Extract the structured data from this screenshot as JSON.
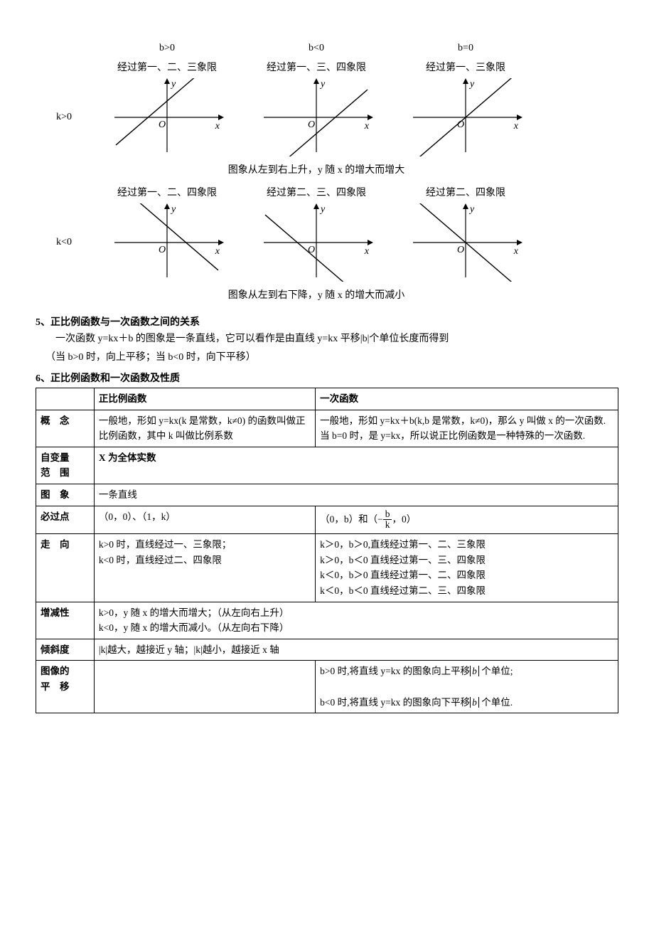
{
  "graph_grid": {
    "col_headers": {
      "b_pos": "b>0",
      "b_neg": "b<0",
      "b_zero": "b=0"
    },
    "rows": [
      {
        "row_label": "k>0",
        "cells": [
          {
            "quadrants": "经过第一、二、三象限",
            "slope": 1,
            "intercept": 0.5
          },
          {
            "quadrants": "经过第一、三、四象限",
            "slope": 1,
            "intercept": -0.5
          },
          {
            "quadrants": "经过第一、三象限",
            "slope": 1,
            "intercept": 0
          }
        ],
        "summary": "图象从左到右上升，y 随 x 的增大而增大"
      },
      {
        "row_label": "k<0",
        "cells": [
          {
            "quadrants": "经过第一、二、四象限",
            "slope": -1,
            "intercept": 0.5
          },
          {
            "quadrants": "经过第二、三、四象限",
            "slope": -1,
            "intercept": -0.5
          },
          {
            "quadrants": "经过第二、四象限",
            "slope": -1,
            "intercept": 0
          }
        ],
        "summary": "图象从左到右下降，y 随 x 的增大而减小"
      }
    ],
    "axis_labels": {
      "x": "x",
      "y": "y",
      "origin": "O"
    },
    "axis_fontsize": 14,
    "style": {
      "width": 160,
      "height": 110,
      "axis_color": "#000000",
      "line_color": "#000000",
      "line_width": 1.4,
      "axis_width": 1.2,
      "xrange": [
        -1.5,
        1.5
      ],
      "yrange": [
        -1.2,
        1.2
      ]
    }
  },
  "section5": {
    "heading": "5、正比例函数与一次函数之间的关系",
    "para1": "一次函数 y=kx＋b 的图象是一条直线，它可以看作是由直线 y=kx 平移|b|个单位长度而得到",
    "para2": "（当 b>0 时，向上平移；当 b<0 时，向下平移）"
  },
  "section6": {
    "heading": "6、正比例函数和一次函数及性质",
    "table": {
      "header": {
        "c1": "",
        "c2": "正比例函数",
        "c3": "一次函数"
      },
      "rows": [
        {
          "label": "概　念",
          "a": "一般地，形如 y=kx(k 是常数，k≠0) 的函数叫做正比例函数，其中 k 叫做比例系数",
          "b": "一般地，形如 y=kx＋b(k,b 是常数，k≠0)，那么 y 叫做 x 的一次函数.当 b=0 时，是 y=kx，所以说正比例函数是一种特殊的一次函数."
        },
        {
          "label": "自变量\n范　围",
          "merged": "X 为全体实数",
          "merged_bold": true
        },
        {
          "label": "图　象",
          "merged": "一条直线"
        },
        {
          "label": "必过点",
          "a": "（0，0）、（1，k）",
          "b_prefix": "（0，b）和（−",
          "b_frac_n": "b",
          "b_frac_d": "k",
          "b_suffix": "，0）"
        },
        {
          "label": "走　向",
          "a_lines": [
            "k>0 时，直线经过一、三象限；",
            "k<0 时，直线经过二、四象限"
          ],
          "b_lines": [
            "k＞0，b＞0,直线经过第一、二、三象限",
            "k＞0，b＜0 直线经过第一、三、四象限",
            "k＜0，b＞0 直线经过第一、二、四象限",
            "k＜0，b＜0 直线经过第二、三、四象限"
          ]
        },
        {
          "label": "增减性",
          "merged_lines": [
            "k>0，y 随 x 的增大而增大；（从左向右上升）",
            "k<0，y 随 x 的增大而减小。（从左向右下降）"
          ]
        },
        {
          "label": "倾斜度",
          "merged": "|k|越大，越接近 y 轴；|k|越小，越接近 x 轴"
        },
        {
          "label": "图像的\n平　移",
          "a": "",
          "b_shift_lines": [
            {
              "pre": "b>0 时,将直线 y=kx 的图象向上平移",
              "abs": "b",
              "post": "个单位;"
            },
            {
              "pre": "b<0 时,将直线 y=kx 的图象向下平移",
              "abs": "b",
              "post": "个单位."
            }
          ]
        }
      ]
    }
  }
}
